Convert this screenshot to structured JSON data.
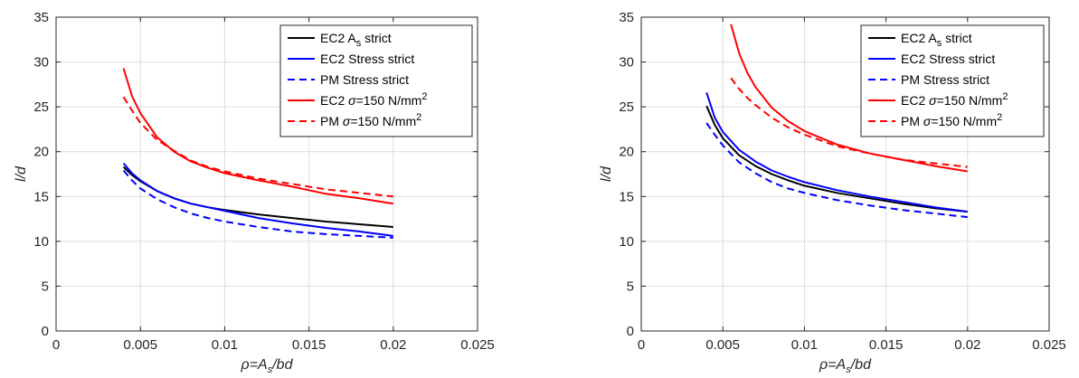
{
  "chart_data": [
    {
      "type": "line",
      "title": "",
      "xlabel": "ρ=A_s/bd",
      "ylabel": "l/d",
      "xlim": [
        0,
        0.025
      ],
      "ylim": [
        0,
        35
      ],
      "xticks": [
        0,
        0.005,
        0.01,
        0.015,
        0.02,
        0.025
      ],
      "xtick_labels": [
        "0",
        "0.005",
        "0.01",
        "0.015",
        "0.02",
        "0.025"
      ],
      "yticks": [
        0,
        5,
        10,
        15,
        20,
        25,
        30,
        35
      ],
      "ytick_labels": [
        "0",
        "5",
        "10",
        "15",
        "20",
        "25",
        "30",
        "35"
      ],
      "grid": true,
      "legend_position": "top-right",
      "series": [
        {
          "name": "EC2 A_s strict",
          "color": "#000000",
          "style": "solid",
          "x": [
            0.004,
            0.0045,
            0.005,
            0.006,
            0.007,
            0.008,
            0.009,
            0.01,
            0.012,
            0.014,
            0.016,
            0.018,
            0.02
          ],
          "y": [
            18.3,
            17.4,
            16.7,
            15.6,
            14.8,
            14.2,
            13.8,
            13.5,
            13.0,
            12.6,
            12.2,
            11.9,
            11.6
          ]
        },
        {
          "name": "EC2 Stress strict",
          "color": "#0000ff",
          "style": "solid",
          "x": [
            0.004,
            0.0045,
            0.005,
            0.006,
            0.007,
            0.008,
            0.009,
            0.01,
            0.012,
            0.014,
            0.016,
            0.018,
            0.02
          ],
          "y": [
            18.7,
            17.6,
            16.8,
            15.6,
            14.8,
            14.2,
            13.8,
            13.4,
            12.6,
            12.0,
            11.5,
            11.1,
            10.6
          ]
        },
        {
          "name": "PM Stress strict",
          "color": "#0000ff",
          "style": "dashed",
          "x": [
            0.004,
            0.0045,
            0.005,
            0.006,
            0.007,
            0.008,
            0.009,
            0.01,
            0.012,
            0.014,
            0.016,
            0.018,
            0.02
          ],
          "y": [
            17.9,
            16.8,
            15.9,
            14.7,
            13.8,
            13.1,
            12.6,
            12.2,
            11.6,
            11.1,
            10.8,
            10.6,
            10.4
          ]
        },
        {
          "name": "EC2 σ=150 N/mm2",
          "color": "#ff0000",
          "style": "solid",
          "x": [
            0.004,
            0.0045,
            0.005,
            0.006,
            0.007,
            0.008,
            0.009,
            0.01,
            0.012,
            0.014,
            0.016,
            0.018,
            0.02
          ],
          "y": [
            29.3,
            26.2,
            24.3,
            21.6,
            20.0,
            18.9,
            18.2,
            17.6,
            16.8,
            16.1,
            15.3,
            14.8,
            14.2
          ]
        },
        {
          "name": "PM σ=150 N/mm2",
          "color": "#ff0000",
          "style": "dashed",
          "x": [
            0.004,
            0.0045,
            0.005,
            0.006,
            0.007,
            0.008,
            0.009,
            0.01,
            0.012,
            0.014,
            0.016,
            0.018,
            0.02
          ],
          "y": [
            26.1,
            24.6,
            23.2,
            21.3,
            20.1,
            19.0,
            18.3,
            17.8,
            17.0,
            16.4,
            15.8,
            15.4,
            15.0
          ]
        }
      ]
    },
    {
      "type": "line",
      "title": "",
      "xlabel": "ρ=A_s/bd",
      "ylabel": "l/d",
      "xlim": [
        0,
        0.025
      ],
      "ylim": [
        0,
        35
      ],
      "xticks": [
        0,
        0.005,
        0.01,
        0.015,
        0.02,
        0.025
      ],
      "xtick_labels": [
        "0",
        "0.005",
        "0.01",
        "0.015",
        "0.02",
        "0.025"
      ],
      "yticks": [
        0,
        5,
        10,
        15,
        20,
        25,
        30,
        35
      ],
      "ytick_labels": [
        "0",
        "5",
        "10",
        "15",
        "20",
        "25",
        "30",
        "35"
      ],
      "grid": true,
      "legend_position": "top-right",
      "series": [
        {
          "name": "EC2 A_s strict",
          "color": "#000000",
          "style": "solid",
          "x": [
            0.004,
            0.0045,
            0.005,
            0.006,
            0.007,
            0.008,
            0.009,
            0.01,
            0.012,
            0.014,
            0.016,
            0.018,
            0.02
          ],
          "y": [
            25.1,
            23.0,
            21.5,
            19.6,
            18.4,
            17.5,
            16.8,
            16.2,
            15.4,
            14.8,
            14.2,
            13.7,
            13.3
          ]
        },
        {
          "name": "EC2 Stress strict",
          "color": "#0000ff",
          "style": "solid",
          "x": [
            0.004,
            0.0045,
            0.005,
            0.006,
            0.007,
            0.008,
            0.009,
            0.01,
            0.012,
            0.014,
            0.016,
            0.018,
            0.02
          ],
          "y": [
            26.6,
            23.8,
            22.2,
            20.2,
            18.9,
            17.9,
            17.2,
            16.6,
            15.7,
            15.0,
            14.4,
            13.8,
            13.3
          ]
        },
        {
          "name": "PM Stress strict",
          "color": "#0000ff",
          "style": "dashed",
          "x": [
            0.004,
            0.0045,
            0.005,
            0.006,
            0.007,
            0.008,
            0.009,
            0.01,
            0.012,
            0.014,
            0.016,
            0.018,
            0.02
          ],
          "y": [
            23.2,
            21.9,
            20.7,
            18.8,
            17.6,
            16.6,
            15.9,
            15.4,
            14.6,
            14.0,
            13.5,
            13.1,
            12.7
          ]
        },
        {
          "name": "EC2 σ=150 N/mm2",
          "color": "#ff0000",
          "style": "solid",
          "x": [
            0.0055,
            0.006,
            0.0065,
            0.007,
            0.008,
            0.009,
            0.01,
            0.012,
            0.014,
            0.016,
            0.018,
            0.02
          ],
          "y": [
            34.2,
            31.0,
            28.8,
            27.2,
            24.9,
            23.4,
            22.3,
            20.8,
            19.8,
            19.1,
            18.4,
            17.8
          ]
        },
        {
          "name": "PM σ=150 N/mm2",
          "color": "#ff0000",
          "style": "dashed",
          "x": [
            0.0055,
            0.006,
            0.0065,
            0.007,
            0.008,
            0.009,
            0.01,
            0.012,
            0.014,
            0.016,
            0.018,
            0.02
          ],
          "y": [
            28.2,
            27.0,
            26.0,
            25.2,
            23.8,
            22.7,
            21.9,
            20.6,
            19.8,
            19.1,
            18.7,
            18.3
          ]
        }
      ]
    }
  ]
}
